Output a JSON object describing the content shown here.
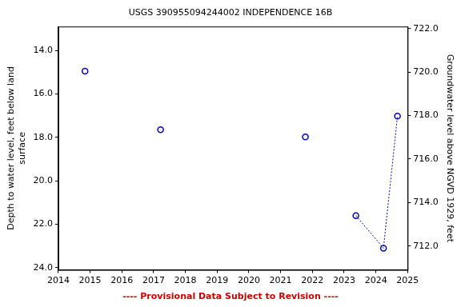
{
  "chart_data": {
    "type": "scatter",
    "title": "USGS 390955094244002 INDEPENDENCE 16B",
    "subtitle": "---- Provisional Data Subject to Revision ----",
    "x_label": null,
    "y_label": [
      "Depth to water level, feet below land",
      "surface"
    ],
    "y2_label": "Groundwater level above NGVD 1929, feet",
    "x": [
      2014.84,
      2017.22,
      2021.78,
      2023.37,
      2024.24,
      2024.68
    ],
    "series": [
      {
        "type": "scatter",
        "color": "#0000cc",
        "marker": "circle",
        "values": [
          14.95,
          17.65,
          17.98,
          21.6,
          23.1,
          17.02
        ]
      },
      {
        "type": "line",
        "color": "#0000cc",
        "line_style": "dotted",
        "values": [
          null,
          null,
          null,
          21.6,
          23.1,
          17.02
        ]
      }
    ],
    "xlim": [
      2014,
      2025
    ],
    "xticks": [
      2014,
      2015,
      2016,
      2017,
      2018,
      2019,
      2020,
      2021,
      2022,
      2023,
      2024,
      2025
    ],
    "ylim": [
      12.9,
      24.1
    ],
    "yticks": [
      {
        "value": 14,
        "label": "14.0"
      },
      {
        "value": 16,
        "label": "16.0"
      },
      {
        "value": 18,
        "label": "18.0"
      },
      {
        "value": 20,
        "label": "20.0"
      },
      {
        "value": 22,
        "label": "22.0"
      },
      {
        "value": 24,
        "label": "24.0"
      }
    ],
    "y2lim": [
      710.9,
      722.1
    ],
    "y2ticks": [
      {
        "value": 712,
        "label": "712.0"
      },
      {
        "value": 714,
        "label": "714.0"
      },
      {
        "value": 716,
        "label": "716.0"
      },
      {
        "value": 718,
        "label": "718.0"
      },
      {
        "value": 720,
        "label": "720.0"
      },
      {
        "value": 722,
        "label": "722.0"
      }
    ],
    "grid": false
  }
}
